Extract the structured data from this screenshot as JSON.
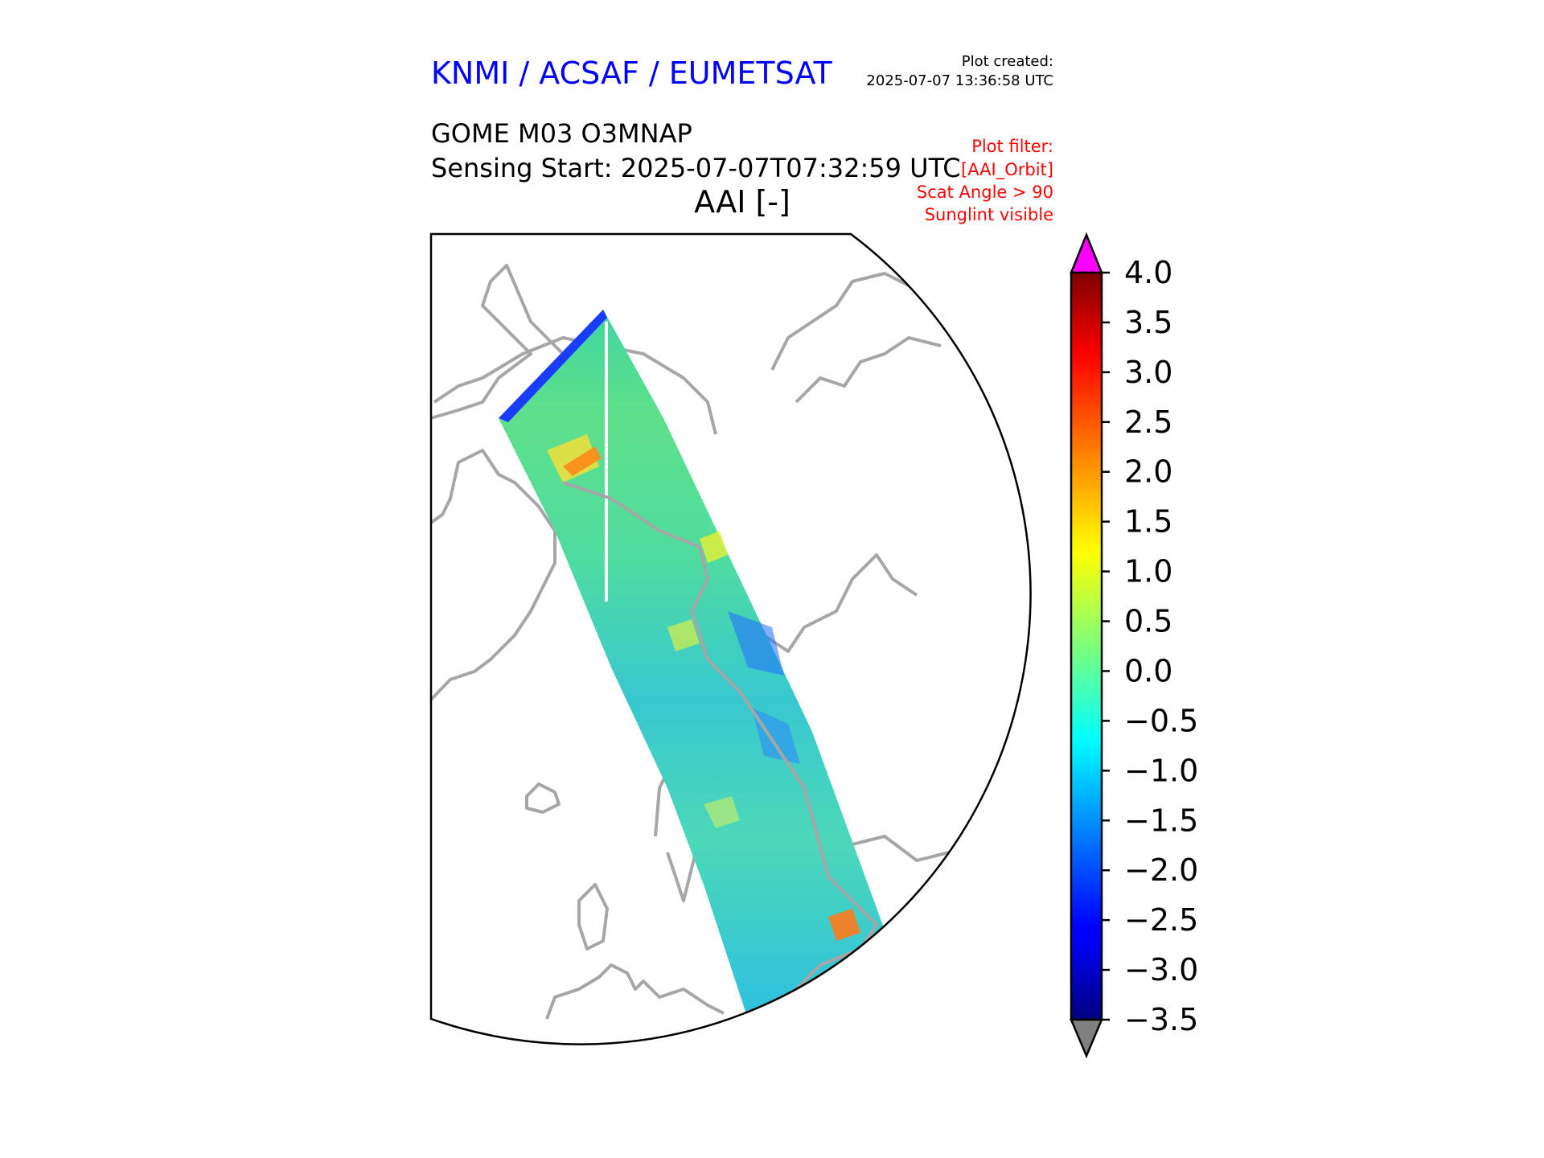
{
  "header": {
    "organization": "KNMI / ACSAF / EUMETSAT",
    "plot_created_label": "Plot created:",
    "plot_created_time": "2025-07-07 13:36:58 UTC",
    "product": "GOME M03 O3MNAP",
    "sensing_start": "Sensing Start: 2025-07-07T07:32:59 UTC",
    "variable": "AAI [-]",
    "plot_filter": [
      "Plot filter:",
      "[AAI_Orbit]",
      "Scat Angle > 90",
      "Sunglint visible"
    ]
  },
  "colors": {
    "org_text": "#0000ff",
    "filter_text": "#ff0000",
    "coastline": "#a6a6a6",
    "over_color": "#ff00ff",
    "under_color": "#808080"
  },
  "colorbar": {
    "min": -3.5,
    "max": 4.0,
    "colormap": "jet",
    "extend": "both",
    "ticks": [
      {
        "value": 4.0,
        "label": "4.0"
      },
      {
        "value": 3.5,
        "label": "3.5"
      },
      {
        "value": 3.0,
        "label": "3.0"
      },
      {
        "value": 2.5,
        "label": "2.5"
      },
      {
        "value": 2.0,
        "label": "2.0"
      },
      {
        "value": 1.5,
        "label": "1.5"
      },
      {
        "value": 1.0,
        "label": "1.0"
      },
      {
        "value": 0.5,
        "label": "0.5"
      },
      {
        "value": 0.0,
        "label": "0.0"
      },
      {
        "value": -0.5,
        "label": "−0.5"
      },
      {
        "value": -1.0,
        "label": "−1.0"
      },
      {
        "value": -1.5,
        "label": "−1.5"
      },
      {
        "value": -2.0,
        "label": "−2.0"
      },
      {
        "value": -2.5,
        "label": "−2.5"
      },
      {
        "value": -3.0,
        "label": "−3.0"
      },
      {
        "value": -3.5,
        "label": "−3.5"
      }
    ]
  }
}
